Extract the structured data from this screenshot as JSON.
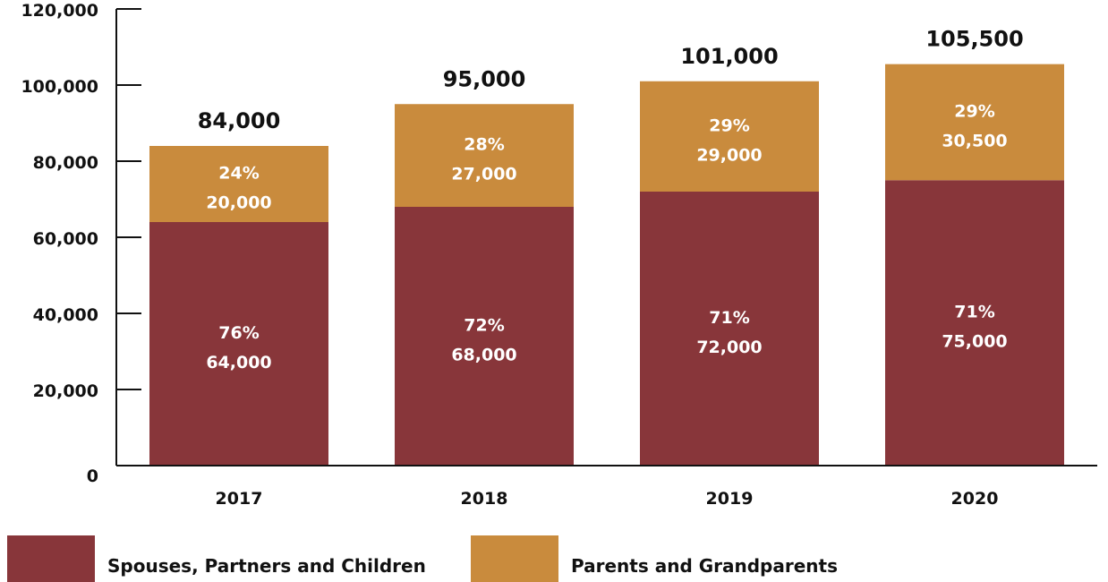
{
  "chart_data": {
    "type": "bar",
    "stacked": true,
    "categories": [
      "2017",
      "2018",
      "2019",
      "2020"
    ],
    "series": [
      {
        "name": "Spouses, Partners and Children",
        "color": "#88363a",
        "values": [
          64000,
          68000,
          72000,
          75000
        ],
        "value_labels": [
          "64,000",
          "68,000",
          "72,000",
          "75,000"
        ],
        "percent_labels": [
          "76%",
          "72%",
          "71%",
          "71%"
        ]
      },
      {
        "name": "Parents and Grandparents",
        "color": "#c98b3d",
        "values": [
          20000,
          27000,
          29000,
          30500
        ],
        "value_labels": [
          "20,000",
          "27,000",
          "29,000",
          "30,500"
        ],
        "percent_labels": [
          "24%",
          "28%",
          "29%",
          "29%"
        ]
      }
    ],
    "totals": [
      84000,
      95000,
      101000,
      105500
    ],
    "total_labels": [
      "84,000",
      "95,000",
      "101,000",
      "105,500"
    ],
    "ylim": [
      0,
      120000
    ],
    "yticks": [
      0,
      20000,
      40000,
      60000,
      80000,
      100000,
      120000
    ],
    "ytick_labels": [
      "0",
      "20,000",
      "40,000",
      "60,000",
      "80,000",
      "100,000",
      "120,000"
    ],
    "title": "",
    "xlabel": "",
    "ylabel": "",
    "grid": false,
    "legend_position": "bottom-left"
  },
  "legend": {
    "items": [
      {
        "label": "Spouses, Partners and Children",
        "color": "#88363a"
      },
      {
        "label": "Parents and Grandparents",
        "color": "#c98b3d"
      }
    ]
  }
}
